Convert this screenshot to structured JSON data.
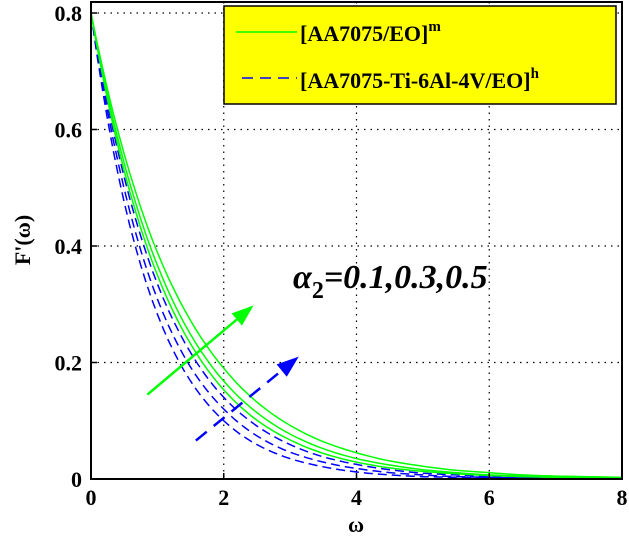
{
  "chart_data": {
    "type": "line",
    "title": "",
    "xlabel": "ω",
    "ylabel": "F'(ω)",
    "xlim": [
      0,
      8
    ],
    "ylim": [
      0,
      0.8
    ],
    "xticks": [
      0,
      2,
      4,
      6,
      8
    ],
    "xtick_labels": [
      "0",
      "2",
      "4",
      "6",
      "8"
    ],
    "yticks": [
      0,
      0.2,
      0.4,
      0.6,
      0.8
    ],
    "ytick_labels": [
      "0",
      "0.2",
      "0.4",
      "0.6",
      "0.8"
    ],
    "grid": true,
    "legend_position": "upper right",
    "legend": [
      {
        "label": "[AA7075/EO]",
        "superscript": "m",
        "color": "#00ff00",
        "style": "solid"
      },
      {
        "label": "[AA7075-Ti-6Al-4V/EO]",
        "superscript": "h",
        "color": "#0000ff",
        "style": "dashed"
      }
    ],
    "annotation": {
      "symbol": "α",
      "subscript": "2",
      "text": "=0.1,0.3,0.5"
    },
    "x": [
      0,
      0.5,
      1,
      1.5,
      2,
      2.5,
      3,
      3.5,
      4,
      4.5,
      5,
      5.5,
      6,
      6.5,
      7,
      7.5,
      8
    ],
    "series": [
      {
        "name": "[AA7075/EO]^m α2=0.1",
        "group": "mono",
        "color": "#00ff00",
        "style": "solid",
        "values": [
          0.8,
          0.558,
          0.389,
          0.272,
          0.19,
          0.132,
          0.092,
          0.064,
          0.045,
          0.031,
          0.022,
          0.015,
          0.011,
          0.007,
          0.005,
          0.004,
          0.003
        ]
      },
      {
        "name": "[AA7075/EO]^m α2=0.3",
        "group": "mono",
        "color": "#00ff00",
        "style": "solid",
        "values": [
          0.8,
          0.542,
          0.367,
          0.248,
          0.168,
          0.114,
          0.077,
          0.052,
          0.035,
          0.024,
          0.016,
          0.011,
          0.007,
          0.005,
          0.003,
          0.002,
          0.002
        ]
      },
      {
        "name": "[AA7075/EO]^m α2=0.5",
        "group": "mono",
        "color": "#00ff00",
        "style": "solid",
        "values": [
          0.8,
          0.529,
          0.35,
          0.232,
          0.153,
          0.101,
          0.067,
          0.044,
          0.029,
          0.019,
          0.013,
          0.009,
          0.006,
          0.004,
          0.003,
          0.002,
          0.001
        ]
      },
      {
        "name": "[AA7075-Ti-6Al-4V/EO]^h α2=0.1",
        "group": "hybrid",
        "color": "#0000ff",
        "style": "dashed",
        "values": [
          0.8,
          0.518,
          0.335,
          0.217,
          0.14,
          0.091,
          0.059,
          0.038,
          0.025,
          0.016,
          0.01,
          0.007,
          0.004,
          0.003,
          0.002,
          0.001,
          0.001
        ]
      },
      {
        "name": "[AA7075-Ti-6Al-4V/EO]^h α2=0.3",
        "group": "hybrid",
        "color": "#0000ff",
        "style": "dashed",
        "values": [
          0.8,
          0.498,
          0.309,
          0.192,
          0.12,
          0.074,
          0.046,
          0.029,
          0.018,
          0.011,
          0.007,
          0.004,
          0.003,
          0.002,
          0.001,
          0.001,
          0.0
        ]
      },
      {
        "name": "[AA7075-Ti-6Al-4V/EO]^h α2=0.5",
        "group": "hybrid",
        "color": "#0000ff",
        "style": "dashed",
        "values": [
          0.8,
          0.475,
          0.283,
          0.168,
          0.1,
          0.059,
          0.035,
          0.021,
          0.012,
          0.007,
          0.004,
          0.003,
          0.002,
          0.001,
          0.001,
          0.0,
          0.0
        ]
      }
    ],
    "arrows": [
      {
        "group": "mono",
        "color": "#00ff00",
        "style": "solid",
        "from": [
          0.85,
          0.145
        ],
        "to": [
          2.45,
          0.298
        ]
      },
      {
        "group": "hybrid",
        "color": "#0000ff",
        "style": "dashed",
        "from": [
          1.58,
          0.066
        ],
        "to": [
          3.13,
          0.21
        ]
      }
    ]
  },
  "colors": {
    "legend_bg": "#ffff00",
    "mono": "#00ff00",
    "hybrid": "#0000ff",
    "axis": "#000000",
    "grid": "#000000"
  }
}
